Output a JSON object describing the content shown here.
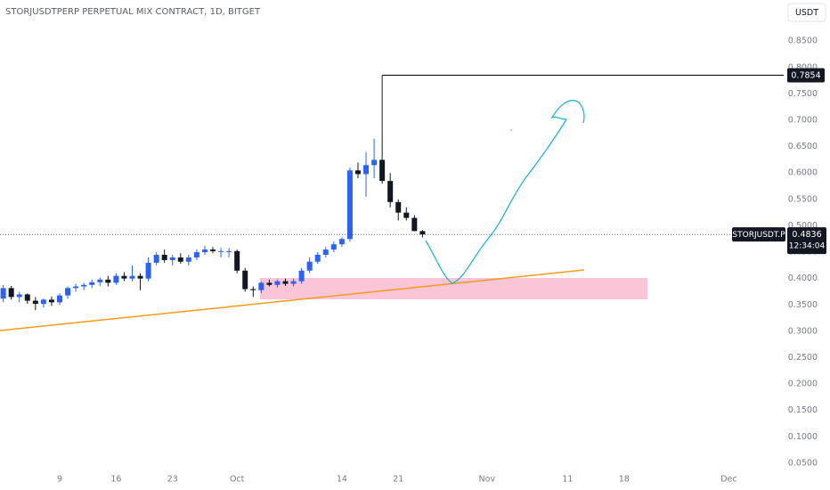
{
  "chart_data": {
    "type": "candlestick",
    "title": "STORJUSDTPERP PERPETUAL MIX CONTRACT, 1D, BITGET",
    "currency": "USDT",
    "symbol": "STORJUSDT.P",
    "countdown": "12:34:04",
    "last_price": 0.4836,
    "marked_high": 0.7854,
    "up_color": "#2962ff",
    "down_color": "#131722",
    "x": [
      0,
      1,
      2,
      3,
      4,
      5,
      6,
      7,
      8,
      9,
      10,
      11,
      12,
      13,
      14,
      15,
      16,
      17,
      18,
      19,
      20,
      21,
      22,
      23,
      24,
      25,
      26,
      27,
      28,
      29,
      30,
      31,
      32,
      33,
      34,
      35,
      36,
      37,
      38,
      39,
      40,
      41,
      42,
      43,
      44,
      45,
      46,
      47,
      48,
      49,
      50,
      51,
      52
    ],
    "open": [
      0.362,
      0.382,
      0.365,
      0.37,
      0.358,
      0.352,
      0.36,
      0.355,
      0.368,
      0.382,
      0.385,
      0.388,
      0.393,
      0.398,
      0.392,
      0.405,
      0.4,
      0.405,
      0.4,
      0.43,
      0.445,
      0.435,
      0.44,
      0.432,
      0.44,
      0.45,
      0.455,
      0.452,
      0.452,
      0.452,
      0.415,
      0.38,
      0.378,
      0.392,
      0.388,
      0.395,
      0.39,
      0.395,
      0.415,
      0.432,
      0.445,
      0.455,
      0.465,
      0.475,
      0.605,
      0.598,
      0.615,
      0.625,
      0.585,
      0.545,
      0.525,
      0.515,
      0.49
    ],
    "high": [
      0.388,
      0.386,
      0.375,
      0.372,
      0.365,
      0.362,
      0.366,
      0.372,
      0.385,
      0.39,
      0.392,
      0.398,
      0.402,
      0.405,
      0.41,
      0.412,
      0.425,
      0.41,
      0.44,
      0.45,
      0.455,
      0.445,
      0.448,
      0.445,
      0.455,
      0.462,
      0.46,
      0.458,
      0.458,
      0.455,
      0.42,
      0.385,
      0.395,
      0.398,
      0.398,
      0.4,
      0.4,
      0.42,
      0.44,
      0.45,
      0.46,
      0.47,
      0.478,
      0.61,
      0.62,
      0.64,
      0.665,
      0.785,
      0.6,
      0.55,
      0.535,
      0.52,
      0.492
    ],
    "low": [
      0.355,
      0.36,
      0.355,
      0.352,
      0.34,
      0.345,
      0.348,
      0.35,
      0.362,
      0.375,
      0.378,
      0.382,
      0.386,
      0.385,
      0.388,
      0.395,
      0.395,
      0.378,
      0.395,
      0.425,
      0.43,
      0.425,
      0.428,
      0.425,
      0.435,
      0.445,
      0.448,
      0.44,
      0.44,
      0.41,
      0.375,
      0.365,
      0.372,
      0.385,
      0.383,
      0.386,
      0.385,
      0.39,
      0.41,
      0.428,
      0.44,
      0.45,
      0.46,
      0.47,
      0.59,
      0.555,
      0.59,
      0.58,
      0.535,
      0.51,
      0.51,
      0.49,
      0.478
    ],
    "close": [
      0.382,
      0.365,
      0.37,
      0.358,
      0.352,
      0.36,
      0.355,
      0.368,
      0.382,
      0.385,
      0.388,
      0.393,
      0.398,
      0.392,
      0.405,
      0.4,
      0.405,
      0.4,
      0.43,
      0.445,
      0.435,
      0.44,
      0.432,
      0.44,
      0.45,
      0.455,
      0.452,
      0.452,
      0.452,
      0.415,
      0.38,
      0.378,
      0.392,
      0.388,
      0.395,
      0.39,
      0.395,
      0.415,
      0.432,
      0.445,
      0.455,
      0.465,
      0.475,
      0.605,
      0.598,
      0.615,
      0.625,
      0.585,
      0.545,
      0.525,
      0.515,
      0.49,
      0.4836
    ],
    "xlim": [
      -0.4,
      96.8
    ],
    "xticks": [
      {
        "value": 7,
        "label": "9"
      },
      {
        "value": 14,
        "label": "16"
      },
      {
        "value": 21,
        "label": "23"
      },
      {
        "value": 29,
        "label": "Oct"
      },
      {
        "value": 42,
        "label": "14"
      },
      {
        "value": 49,
        "label": "21"
      },
      {
        "value": 60,
        "label": "Nov"
      },
      {
        "value": 70,
        "label": "11"
      },
      {
        "value": 77,
        "label": "18"
      },
      {
        "value": 90,
        "label": "Dec"
      }
    ],
    "ylim": [
      0.033,
      0.928
    ],
    "yticks": [
      {
        "value": 0.05,
        "label": "0.0500"
      },
      {
        "value": 0.1,
        "label": "0.1000"
      },
      {
        "value": 0.15,
        "label": "0.1500"
      },
      {
        "value": 0.2,
        "label": "0.2000"
      },
      {
        "value": 0.25,
        "label": "0.2500"
      },
      {
        "value": 0.3,
        "label": "0.3000"
      },
      {
        "value": 0.35,
        "label": "0.3500"
      },
      {
        "value": 0.4,
        "label": "0.4000"
      },
      {
        "value": 0.45,
        "label": "0.4500"
      },
      {
        "value": 0.5,
        "label": "0.5000"
      },
      {
        "value": 0.55,
        "label": "0.5500"
      },
      {
        "value": 0.6,
        "label": "0.6000"
      },
      {
        "value": 0.65,
        "label": "0.6500"
      },
      {
        "value": 0.7,
        "label": "0.7000"
      },
      {
        "value": 0.75,
        "label": "0.7500"
      },
      {
        "value": 0.8,
        "label": "0.8000"
      },
      {
        "value": 0.85,
        "label": "0.8500"
      }
    ]
  }
}
